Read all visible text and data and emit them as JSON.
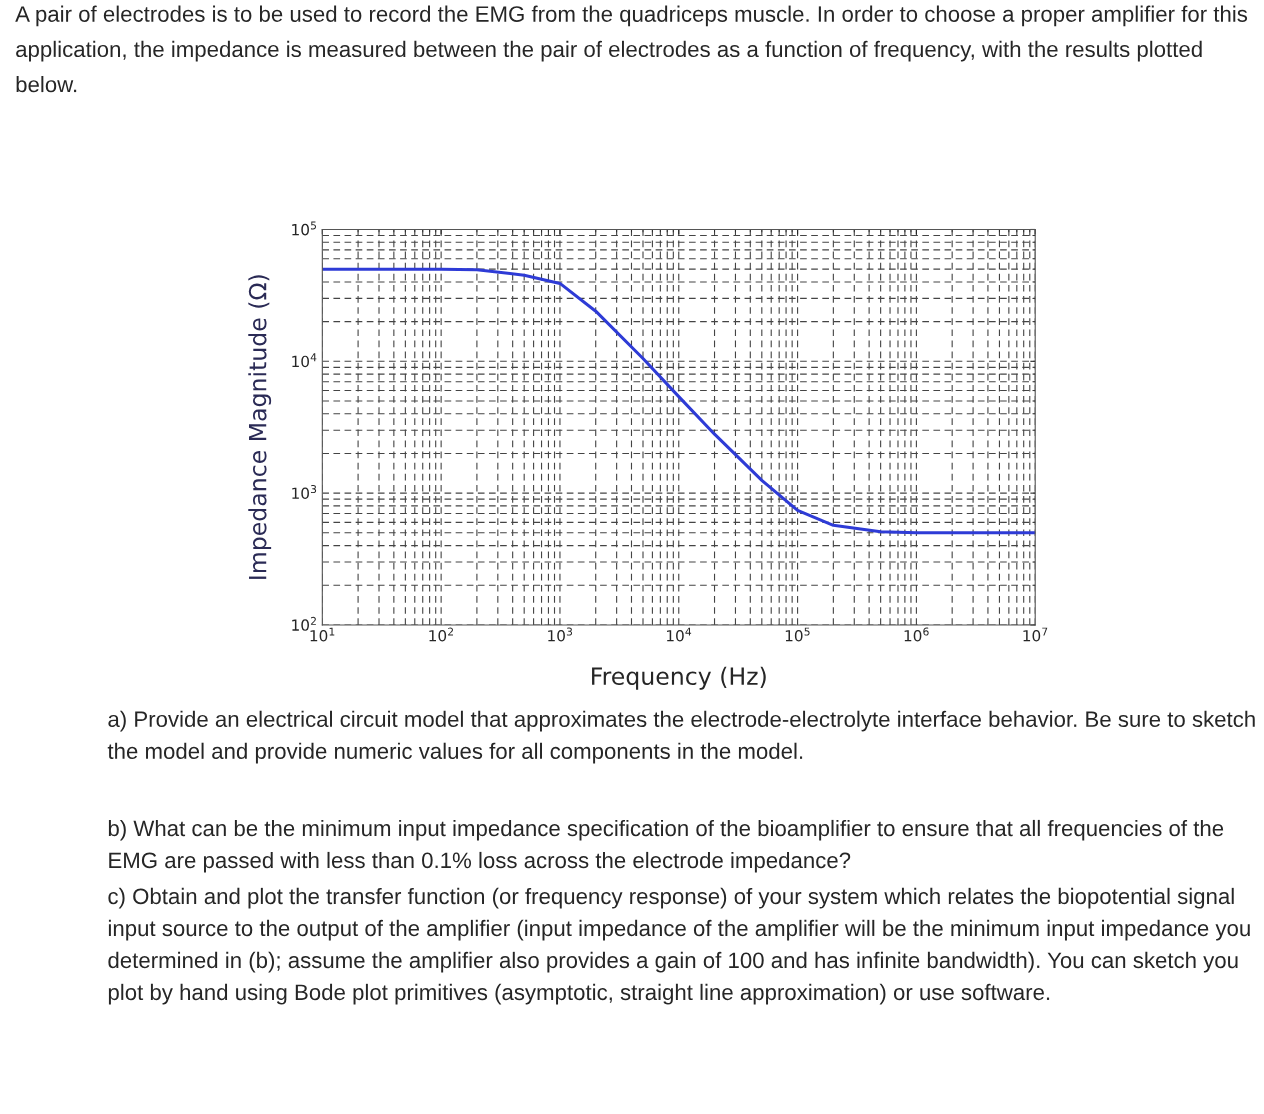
{
  "chart_data": {
    "type": "line",
    "title": "A pair of electrodes is to be used to record the EMG from the quadriceps muscle. In order to choose a proper amplifier for this application, the impedance is measured between the pair of electrodes as a function of frequency, with the results plotted below.",
    "xlabel": "Frequency (Hz)",
    "ylabel": "Impedance Magnitude (Ω)",
    "x": [
      10,
      100,
      200,
      500,
      1000,
      2000,
      5000,
      10000,
      20000,
      50000,
      100000,
      200000,
      500000,
      1000000,
      10000000
    ],
    "series": [
      {
        "color": "#2e3bd6",
        "values": [
          50000,
          50000,
          49500,
          45000,
          39000,
          24000,
          10500,
          5400,
          2800,
          1250,
          740,
          570,
          510,
          500,
          500
        ]
      }
    ],
    "log": "xy",
    "grid": true,
    "marker": "none",
    "line_style": "solid",
    "xlim": [
      10,
      10000000
    ],
    "ylim": [
      100,
      100000
    ],
    "xticks": [
      {
        "value": 10,
        "label": "10$^{1}$"
      },
      {
        "value": 100,
        "label": "10$^{2}$"
      },
      {
        "value": 1000,
        "label": "10$^{3}$"
      },
      {
        "value": 10000,
        "label": "10$^{4}$"
      },
      {
        "value": 100000,
        "label": "10$^{5}$"
      },
      {
        "value": 1000000,
        "label": "10$^{6}$"
      },
      {
        "value": 10000000,
        "label": "10$^{7}$"
      }
    ],
    "yticks": [
      {
        "value": 100,
        "label": "10$^{2}$"
      },
      {
        "value": 1000,
        "label": "10$^{3}$"
      },
      {
        "value": 10000,
        "label": "10$^{4}$"
      },
      {
        "value": 100000,
        "label": "10$^{5}$"
      }
    ],
    "annotations": [
      "a) Provide an electrical circuit model that approximates the electrode-electrolyte interface behavior. Be sure to sketch the model and provide numeric values for all components in the model.",
      "b) What can be the minimum input impedance specification of the bioamplifier to ensure that all frequencies of the EMG are passed with less than 0.1% loss across the electrode impedance?",
      "c) Obtain and plot the transfer function (or frequency response) of your system which relates the biopotential signal input source to the output of the amplifier (input impedance of the amplifier will be the minimum input impedance you determined in (b); assume the amplifier also provides a gain of 100 and has infinite bandwidth). You can sketch you plot by hand using Bode plot primitives (asymptotic, straight line approximation) or use software."
    ]
  }
}
